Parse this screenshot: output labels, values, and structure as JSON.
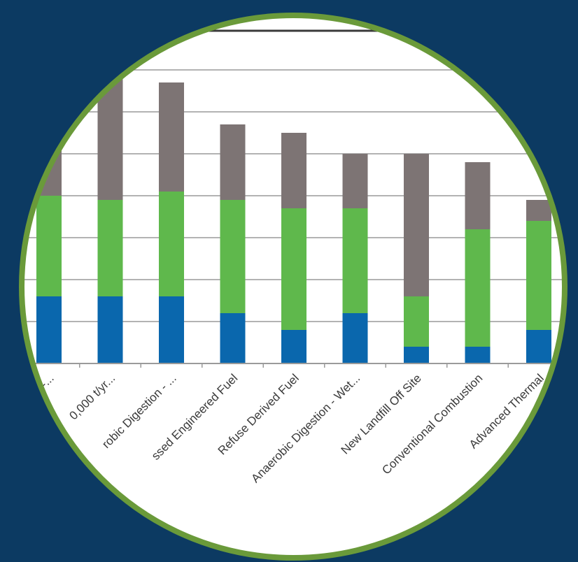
{
  "colors": {
    "background": "#0c3a62",
    "ring": "#6a9a3a",
    "plot_bg": "#ffffff",
    "gridline": "#9a9a9a",
    "top_rule": "#3a3a3a"
  },
  "chart_data": {
    "type": "bar",
    "stacked": true,
    "grid": true,
    "legend": "none",
    "title": "",
    "xlabel": "",
    "ylabel": "",
    "ylim": [
      0,
      7
    ],
    "categories": [
      "...",
      "...0,000 t/yr...",
      "...robic Digestion - ...",
      "...ssed Engineered Fuel",
      "Refuse Derived Fuel",
      "Anaerobic Digestion - Wet...",
      "New Landfill Off Site",
      "Conventional Combustion",
      "Advanced Thermal"
    ],
    "tick_labels": [
      "-...",
      "0,000 t/yr...",
      "robic Digestion - ...",
      "ssed Engineered Fuel",
      "Refuse Derived Fuel",
      "Anaerobic Digestion - Wet...",
      "New Landfill Off Site",
      "Conventional Combustion",
      "Advanced Thermal"
    ],
    "series": [
      {
        "color": "#0a67ad",
        "values": [
          1.6,
          1.6,
          1.6,
          1.2,
          0.8,
          1.2,
          0.4,
          0.4,
          0.8
        ]
      },
      {
        "color": "#5fb84c",
        "values": [
          2.4,
          2.3,
          2.5,
          2.7,
          2.9,
          2.5,
          1.2,
          2.8,
          2.6
        ]
      },
      {
        "color": "#7d7474",
        "values": [
          1.4,
          3.2,
          2.6,
          1.8,
          1.8,
          1.3,
          3.4,
          1.6,
          0.5
        ]
      }
    ]
  }
}
